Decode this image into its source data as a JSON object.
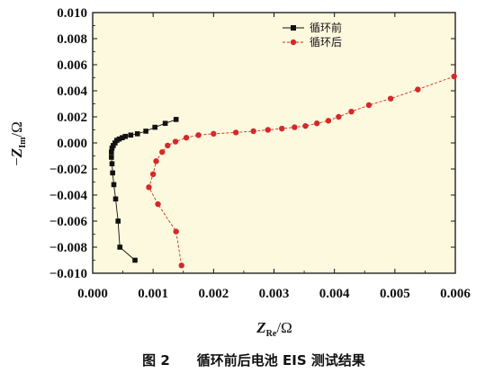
{
  "chart_data": {
    "type": "scatter",
    "xlabel": "Z_Re/Ω",
    "xlabel_main": "Z",
    "xlabel_sub": "Re",
    "xlabel_unit": "/Ω",
    "ylabel_prefix": "−",
    "ylabel_main": "Z",
    "ylabel_sub": "Im",
    "ylabel_unit": "/Ω",
    "xlim": [
      0,
      0.006
    ],
    "ylim": [
      -0.01,
      0.01
    ],
    "x_ticks": [
      "0.000",
      "0.001",
      "0.002",
      "0.003",
      "0.004",
      "0.005",
      "0.006"
    ],
    "y_ticks": [
      "0.010",
      "0.008",
      "0.006",
      "0.004",
      "0.002",
      "0.000",
      "−0.002",
      "−0.004",
      "−0.006",
      "−0.008",
      "−0.010"
    ],
    "plot_background": "#fdf9de",
    "legend_position": "top-right",
    "caption": "图 2　　循环前后电池 EIS 测试结果",
    "series": [
      {
        "name": "循环前",
        "color": "#111111",
        "marker": "square",
        "x": [
          0.0007,
          0.00045,
          0.00042,
          0.00038,
          0.00035,
          0.00033,
          0.00032,
          0.00031,
          0.00031,
          0.00032,
          0.00034,
          0.00037,
          0.0004,
          0.00044,
          0.00049,
          0.00054,
          0.00063,
          0.00074,
          0.00088,
          0.00103,
          0.0012,
          0.00138
        ],
        "y": [
          -0.009,
          -0.008,
          -0.006,
          -0.0043,
          -0.0032,
          -0.0023,
          -0.0016,
          -0.0011,
          -0.0007,
          -0.0004,
          -0.0002,
          0.0,
          0.0002,
          0.0003,
          0.0004,
          0.0005,
          0.0006,
          0.0007,
          0.0009,
          0.0012,
          0.0015,
          0.0018
        ]
      },
      {
        "name": "循环后",
        "color": "#d42a2a",
        "marker": "circle",
        "x": [
          0.00147,
          0.00138,
          0.00108,
          0.00093,
          0.001,
          0.00105,
          0.00115,
          0.00124,
          0.00137,
          0.00155,
          0.00175,
          0.002,
          0.00237,
          0.00266,
          0.0029,
          0.00313,
          0.00334,
          0.00352,
          0.00371,
          0.0039,
          0.00407,
          0.00428,
          0.00457,
          0.00493,
          0.00538,
          0.00598
        ],
        "y": [
          -0.0094,
          -0.0068,
          -0.0047,
          -0.0034,
          -0.0024,
          -0.0014,
          -0.0007,
          -0.0002,
          0.0001,
          0.0004,
          0.0006,
          0.0007,
          0.0008,
          0.0009,
          0.001,
          0.0011,
          0.0012,
          0.0013,
          0.0015,
          0.0017,
          0.002,
          0.0024,
          0.0029,
          0.0034,
          0.0041,
          0.0051
        ]
      }
    ]
  }
}
